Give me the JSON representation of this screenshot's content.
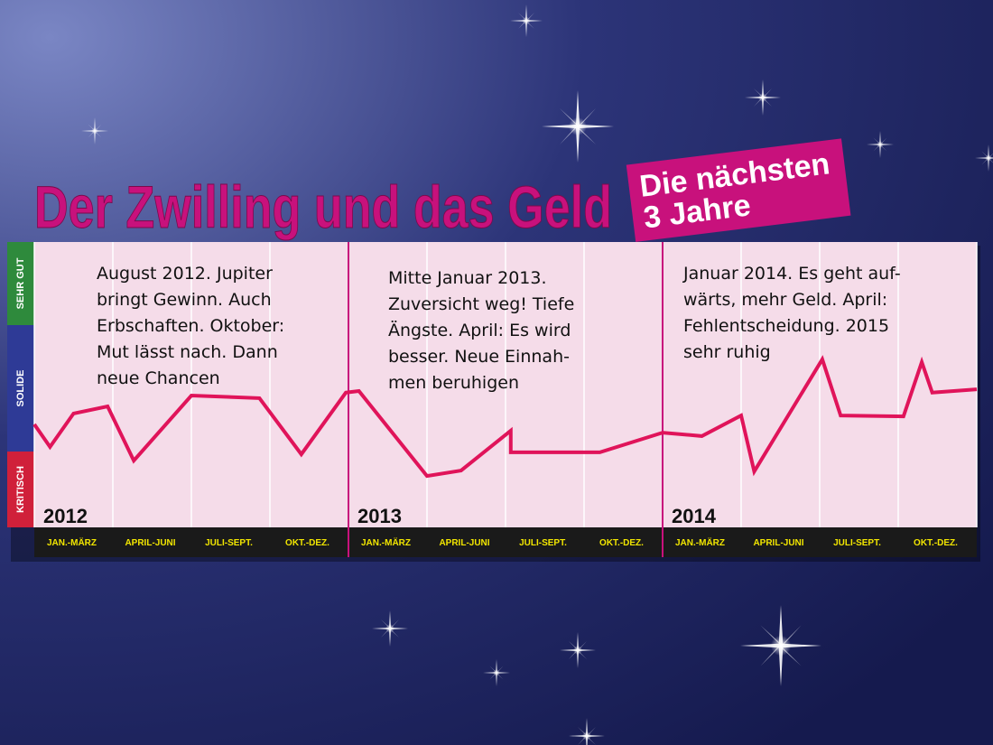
{
  "chart_data": {
    "type": "line",
    "title": "Der Zwilling und das Geld",
    "badge": [
      "Die nächsten",
      "3 Jahre"
    ],
    "bands": [
      {
        "label": "SEHR GUT",
        "color": "#2e8a3c"
      },
      {
        "label": "SOLIDE",
        "color": "#2e3a96"
      },
      {
        "label": "KRITISCH",
        "color": "#d0203a"
      }
    ],
    "panels": [
      {
        "year": "2012",
        "lines": [
          "August 2012. Jupiter",
          "bringt Gewinn. Auch",
          "Erbschaften. Oktober:",
          "Mut lässt nach. Dann",
          "neue Chancen"
        ]
      },
      {
        "year": "2013",
        "lines": [
          "Mitte Januar 2013.",
          "Zuversicht weg! Tiefe",
          "Ängste. April: Es wird",
          "besser. Neue Einnah-",
          "men beruhigen"
        ]
      },
      {
        "year": "2014",
        "lines": [
          "Januar 2014. Es geht auf-",
          "wärts, mehr Geld. April:",
          "Fehlentscheidung. 2015",
          "sehr ruhig"
        ]
      }
    ],
    "quarter_labels": [
      "JAN.-MÄRZ",
      "APRIL-JUNI",
      "JULI-SEPT.",
      "OKT.-DEZ.",
      "JAN.-MÄRZ",
      "APRIL-JUNI",
      "JULI-SEPT.",
      "OKT.-DEZ.",
      "JAN.-MÄRZ",
      "APRIL-JUNI",
      "JULI-SEPT.",
      "OKT.-DEZ."
    ],
    "xlim": [
      0,
      36
    ],
    "xticks": [
      0,
      3,
      6,
      9,
      12,
      15,
      18,
      21,
      24,
      27,
      30,
      33,
      36
    ],
    "ylim": [
      0,
      100
    ],
    "grid": true,
    "series": [
      {
        "color": "#e0145a",
        "x": [
          0,
          0.6,
          1.5,
          2.8,
          3.8,
          6.0,
          8.6,
          10.2,
          11.9,
          12.4,
          15.0,
          16.3,
          18.2,
          18.2,
          21.6,
          24.0,
          25.5,
          27.0,
          27.5,
          30.1,
          30.8,
          33.2,
          33.9,
          34.3,
          36
        ],
        "values": [
          36.1,
          28.2,
          39.9,
          42.4,
          23.4,
          46.2,
          45.3,
          25.6,
          47.2,
          47.8,
          18.0,
          19.9,
          33.9,
          26.3,
          26.3,
          33.2,
          32.0,
          39.2,
          19.6,
          58.9,
          39.2,
          38.9,
          57.9,
          47.2,
          48.4
        ]
      }
    ]
  }
}
